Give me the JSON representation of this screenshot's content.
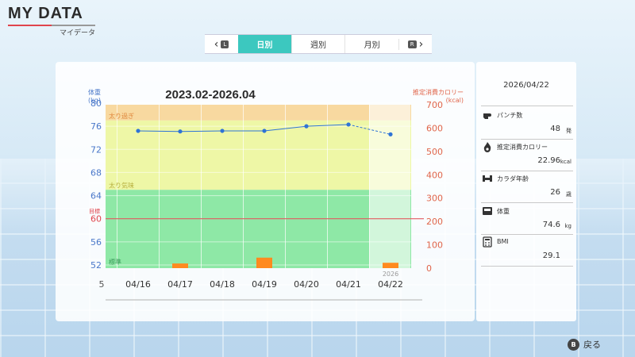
{
  "header": {
    "title": "MY DATA",
    "subtitle": "マイデータ"
  },
  "tabs": {
    "prev_key": "L",
    "next_key": "R",
    "items": [
      {
        "label": "日別",
        "active": true
      },
      {
        "label": "週別",
        "active": false
      },
      {
        "label": "月別",
        "active": false
      }
    ]
  },
  "chart": {
    "title": "2023.02-2026.04",
    "left_axis_label": "体重",
    "left_axis_unit": "(kg)",
    "right_axis_label": "推定消費カロリー",
    "right_axis_unit": "(kcal)",
    "zone_labels": {
      "over": "太り過ぎ",
      "slightly_over": "太り気味",
      "goal": "目標",
      "normal": "標準"
    },
    "selected_year": "2026",
    "left_edge_tick": "5"
  },
  "chart_data": {
    "type": "bar+line",
    "categories": [
      "04/16",
      "04/17",
      "04/18",
      "04/19",
      "04/20",
      "04/21",
      "04/22"
    ],
    "weight_kg": [
      75.2,
      75.1,
      75.2,
      75.2,
      76.0,
      76.3,
      74.6
    ],
    "calories_kcal": [
      0,
      20,
      0,
      45,
      0,
      0,
      22.96
    ],
    "left_ylim": [
      52,
      80
    ],
    "left_ticks": [
      80,
      76,
      72,
      68,
      64,
      60,
      56,
      52
    ],
    "right_ylim": [
      0,
      700
    ],
    "right_ticks": [
      700,
      600,
      500,
      400,
      300,
      200,
      100,
      0
    ],
    "goal_weight": 60,
    "zones_kg": {
      "over_min": 77,
      "slightly_over_min": 65,
      "normal_max": 65
    },
    "selected_index": 6,
    "colors": {
      "line": "#2f74d6",
      "bar": "#ff8a1f",
      "goal": "#e0454d",
      "over": "#f8d9a0",
      "slightly_over": "#eef7a6",
      "normal": "#8ee8a6"
    }
  },
  "stats": {
    "date": "2026/04/22",
    "items": [
      {
        "icon": "punch-icon",
        "label": "パンチ数",
        "value": "48",
        "unit": "発"
      },
      {
        "icon": "flame-icon",
        "label": "推定消費カロリー",
        "value": "22.96",
        "unit": "kcal"
      },
      {
        "icon": "muscle-icon",
        "label": "カラダ年齢",
        "value": "26",
        "unit": "歳"
      },
      {
        "icon": "scale-icon",
        "label": "体重",
        "value": "74.6",
        "unit": "kg"
      },
      {
        "icon": "calculator-icon",
        "label": "BMI",
        "value": "29.1",
        "unit": ""
      }
    ]
  },
  "footer": {
    "back_key": "B",
    "back_label": "戻る"
  }
}
